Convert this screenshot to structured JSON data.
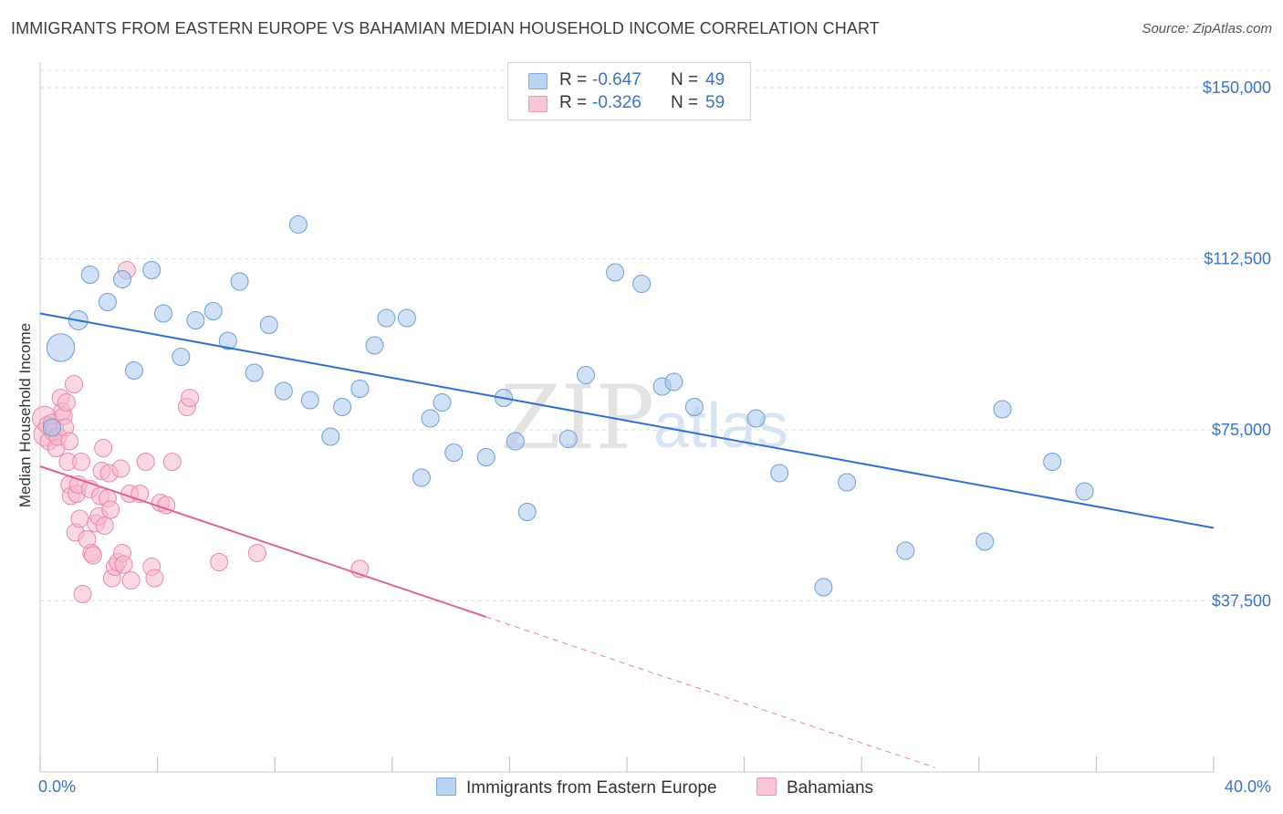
{
  "title": "IMMIGRANTS FROM EASTERN EUROPE VS BAHAMIAN MEDIAN HOUSEHOLD INCOME CORRELATION CHART",
  "source": "Source: ZipAtlas.com",
  "watermark": {
    "zip": "ZIP",
    "atlas": "atlas"
  },
  "legend": {
    "r_label": "R =",
    "n_label": "N =",
    "series": [
      {
        "name": "Immigrants from Eastern Europe",
        "r": "-0.647",
        "n": "49"
      },
      {
        "name": "Bahamians",
        "r": "-0.326",
        "n": "59"
      }
    ]
  },
  "colors": {
    "blue_fill": "#aac8ee",
    "blue_stroke": "#6b9fdc",
    "blue_line": "#2f6fcd",
    "blue_text": "#3b73c8",
    "pink_fill": "#f5b8cb",
    "pink_stroke": "#e98aa8",
    "pink_line": "#e0648d",
    "grid": "#dddddd"
  },
  "chart_data": {
    "type": "scatter",
    "title": "IMMIGRANTS FROM EASTERN EUROPE VS BAHAMIAN MEDIAN HOUSEHOLD INCOME CORRELATION CHART",
    "xlabel": "",
    "ylabel": "Median Household Income",
    "xlim": [
      0,
      40
    ],
    "ylim": [
      0,
      156000
    ],
    "x_tick_labels": [
      "0.0%",
      "40.0%"
    ],
    "y_ticks": [
      37500,
      75000,
      112500,
      150000
    ],
    "y_tick_labels": [
      "$37,500",
      "$75,000",
      "$112,500",
      "$150,000"
    ],
    "grid": true,
    "legend_position": "top-center",
    "series": [
      {
        "name": "Immigrants from Eastern Europe",
        "r": -0.647,
        "n": 49,
        "trend": [
          [
            0,
            100500
          ],
          [
            40,
            53500
          ]
        ],
        "points": [
          [
            0.4,
            75500
          ],
          [
            0.7,
            93000
          ],
          [
            1.3,
            99000
          ],
          [
            1.7,
            109000
          ],
          [
            2.3,
            103000
          ],
          [
            2.8,
            108000
          ],
          [
            3.2,
            88000
          ],
          [
            3.8,
            110000
          ],
          [
            4.2,
            100500
          ],
          [
            4.8,
            91000
          ],
          [
            5.3,
            99000
          ],
          [
            5.9,
            101000
          ],
          [
            6.4,
            94500
          ],
          [
            6.8,
            107500
          ],
          [
            7.3,
            87500
          ],
          [
            7.8,
            98000
          ],
          [
            8.3,
            83500
          ],
          [
            8.8,
            120000
          ],
          [
            9.2,
            81500
          ],
          [
            9.9,
            73500
          ],
          [
            10.3,
            80000
          ],
          [
            10.9,
            84000
          ],
          [
            11.4,
            93500
          ],
          [
            11.8,
            99500
          ],
          [
            12.5,
            99500
          ],
          [
            13.0,
            64500
          ],
          [
            13.3,
            77500
          ],
          [
            13.7,
            81000
          ],
          [
            14.1,
            70000
          ],
          [
            15.2,
            69000
          ],
          [
            15.8,
            82000
          ],
          [
            16.2,
            72500
          ],
          [
            16.6,
            57000
          ],
          [
            18.0,
            73000
          ],
          [
            18.6,
            87000
          ],
          [
            19.6,
            109500
          ],
          [
            20.5,
            107000
          ],
          [
            21.2,
            84500
          ],
          [
            21.6,
            85500
          ],
          [
            22.3,
            80000
          ],
          [
            24.4,
            77500
          ],
          [
            25.2,
            65500
          ],
          [
            26.7,
            40500
          ],
          [
            27.5,
            63500
          ],
          [
            29.5,
            48500
          ],
          [
            32.2,
            50500
          ],
          [
            32.8,
            79500
          ],
          [
            34.5,
            68000
          ],
          [
            35.6,
            61500
          ]
        ],
        "sizes": [
          1,
          1.6,
          1.1,
          1,
          1,
          1,
          1,
          1,
          1,
          1,
          1,
          1,
          1,
          1,
          1,
          1,
          1,
          1,
          1,
          1,
          1,
          1,
          1,
          1,
          1,
          1,
          1,
          1,
          1,
          1,
          1,
          1,
          1,
          1,
          1,
          1,
          1,
          1,
          1,
          1,
          1,
          1,
          1,
          1,
          1,
          1,
          1,
          1,
          1
        ]
      },
      {
        "name": "Bahamians",
        "r": -0.326,
        "n": 59,
        "trend": [
          [
            0,
            67000
          ],
          [
            15.2,
            34000
          ]
        ],
        "trend_dashed": [
          [
            15.2,
            34000
          ],
          [
            30.5,
            1000
          ]
        ],
        "points": [
          [
            0.15,
            77500
          ],
          [
            0.2,
            74000
          ],
          [
            0.25,
            76000
          ],
          [
            0.3,
            72500
          ],
          [
            0.4,
            76500
          ],
          [
            0.45,
            74500
          ],
          [
            0.5,
            75500
          ],
          [
            0.55,
            71000
          ],
          [
            0.6,
            73500
          ],
          [
            0.7,
            82000
          ],
          [
            0.75,
            79000
          ],
          [
            0.8,
            78000
          ],
          [
            0.85,
            75500
          ],
          [
            0.9,
            81000
          ],
          [
            0.95,
            68000
          ],
          [
            1.0,
            63000
          ],
          [
            1.0,
            72500
          ],
          [
            1.05,
            60500
          ],
          [
            1.15,
            85000
          ],
          [
            1.2,
            52500
          ],
          [
            1.25,
            61000
          ],
          [
            1.3,
            63000
          ],
          [
            1.35,
            55500
          ],
          [
            1.4,
            68000
          ],
          [
            1.45,
            39000
          ],
          [
            1.6,
            51000
          ],
          [
            1.7,
            62000
          ],
          [
            1.75,
            48000
          ],
          [
            1.8,
            47500
          ],
          [
            1.9,
            54500
          ],
          [
            2.0,
            56000
          ],
          [
            2.05,
            60500
          ],
          [
            2.1,
            66000
          ],
          [
            2.15,
            71000
          ],
          [
            2.2,
            54000
          ],
          [
            2.3,
            60000
          ],
          [
            2.35,
            65500
          ],
          [
            2.4,
            57500
          ],
          [
            2.45,
            42500
          ],
          [
            2.55,
            45000
          ],
          [
            2.65,
            46000
          ],
          [
            2.75,
            66500
          ],
          [
            2.8,
            48000
          ],
          [
            2.85,
            45500
          ],
          [
            2.95,
            110000
          ],
          [
            3.05,
            61000
          ],
          [
            3.1,
            42000
          ],
          [
            3.4,
            61000
          ],
          [
            3.6,
            68000
          ],
          [
            3.8,
            45000
          ],
          [
            3.9,
            42500
          ],
          [
            4.1,
            59000
          ],
          [
            4.3,
            58500
          ],
          [
            4.5,
            68000
          ],
          [
            5.0,
            80000
          ],
          [
            5.1,
            82000
          ],
          [
            6.1,
            46000
          ],
          [
            7.4,
            48000
          ],
          [
            10.9,
            44500
          ]
        ],
        "sizes": [
          1.4,
          1.4,
          1,
          1,
          1,
          1,
          1,
          1,
          1,
          1,
          1,
          1,
          1,
          1,
          1,
          1,
          1,
          1,
          1,
          1,
          1,
          1,
          1,
          1,
          1,
          1,
          1,
          1,
          1,
          1,
          1,
          1,
          1,
          1,
          1,
          1,
          1,
          1,
          1,
          1,
          1,
          1,
          1,
          1,
          1,
          1,
          1,
          1,
          1,
          1,
          1,
          1,
          1,
          1,
          1,
          1,
          1,
          1,
          1
        ]
      }
    ]
  }
}
